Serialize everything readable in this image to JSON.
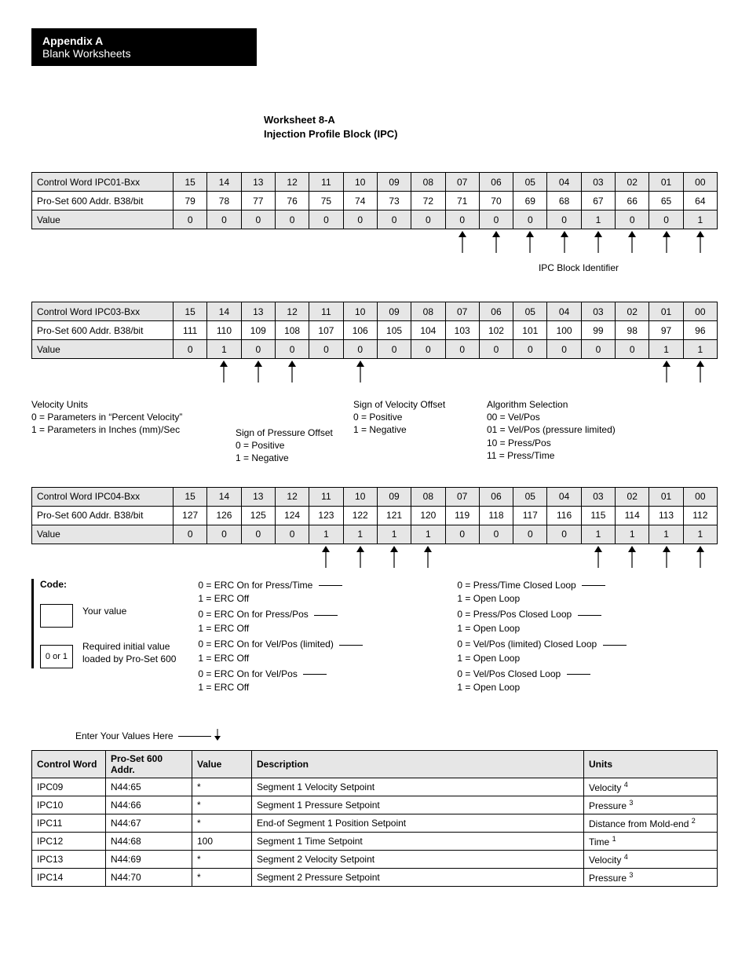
{
  "header": {
    "appendix": "Appendix A",
    "subtitle": "Blank Worksheets"
  },
  "worksheet_title": {
    "line1": "Worksheet 8-A",
    "line2": "Injection Profile Block (IPC)"
  },
  "colors": {
    "header_bg": "#e6e6e6",
    "black": "#000000",
    "white": "#ffffff"
  },
  "bit_tables": [
    {
      "rows": [
        {
          "label": "Control Word IPC01-Bxx",
          "cells": [
            "15",
            "14",
            "13",
            "12",
            "11",
            "10",
            "09",
            "08",
            "07",
            "06",
            "05",
            "04",
            "03",
            "02",
            "01",
            "00"
          ],
          "shaded": true
        },
        {
          "label": "Pro-Set 600 Addr. B38/bit",
          "cells": [
            "79",
            "78",
            "77",
            "76",
            "75",
            "74",
            "73",
            "72",
            "71",
            "70",
            "69",
            "68",
            "67",
            "66",
            "65",
            "64"
          ],
          "shaded": false
        },
        {
          "label": "Value",
          "cells": [
            "0",
            "0",
            "0",
            "0",
            "0",
            "0",
            "0",
            "0",
            "0",
            "0",
            "0",
            "0",
            "1",
            "0",
            "0",
            "1"
          ],
          "shaded": true
        }
      ],
      "arrows_at": [
        8,
        9,
        10,
        11,
        12,
        13,
        14,
        15
      ],
      "post_label": "IPC Block Identifier"
    },
    {
      "rows": [
        {
          "label": "Control Word  IPC03-Bxx",
          "cells": [
            "15",
            "14",
            "13",
            "12",
            "11",
            "10",
            "09",
            "08",
            "07",
            "06",
            "05",
            "04",
            "03",
            "02",
            "01",
            "00"
          ],
          "shaded": true
        },
        {
          "label": "Pro-Set 600 Addr. B38/bit",
          "cells": [
            "111",
            "110",
            "109",
            "108",
            "107",
            "106",
            "105",
            "104",
            "103",
            "102",
            "101",
            "100",
            "99",
            "98",
            "97",
            "96"
          ],
          "shaded": false
        },
        {
          "label": "Value",
          "cells": [
            "0",
            "1",
            "0",
            "0",
            "0",
            "0",
            "0",
            "0",
            "0",
            "0",
            "0",
            "0",
            "0",
            "0",
            "1",
            "1"
          ],
          "shaded": true
        }
      ],
      "arrows_at": [
        1,
        2,
        3,
        5,
        14,
        15
      ],
      "annotations": {
        "velocity_units": {
          "title": "Velocity Units",
          "l1": "0 = Parameters in “Percent Velocity”",
          "l2": "1 = Parameters in Inches (mm)/Sec"
        },
        "sign_pressure": {
          "title": "Sign of Pressure Offset",
          "l1": "0 =  Positive",
          "l2": "1 =  Negative"
        },
        "sign_velocity": {
          "title": "Sign of Velocity Offset",
          "l1": "0 =  Positive",
          "l2": "1 =  Negative"
        },
        "algo": {
          "title": "Algorithm Selection",
          "l1": "00 = Vel/Pos",
          "l2": "01 = Vel/Pos (pressure limited)",
          "l3": "10 = Press/Pos",
          "l4": "11 = Press/Time"
        }
      }
    },
    {
      "rows": [
        {
          "label": "Control Word  IPC04-Bxx",
          "cells": [
            "15",
            "14",
            "13",
            "12",
            "11",
            "10",
            "09",
            "08",
            "07",
            "06",
            "05",
            "04",
            "03",
            "02",
            "01",
            "00"
          ],
          "shaded": true
        },
        {
          "label": "Pro-Set 600 Addr. B38/bit",
          "cells": [
            "127",
            "126",
            "125",
            "124",
            "123",
            "122",
            "121",
            "120",
            "119",
            "118",
            "117",
            "116",
            "115",
            "114",
            "113",
            "112"
          ],
          "shaded": false
        },
        {
          "label": "Value",
          "cells": [
            "0",
            "0",
            "0",
            "0",
            "1",
            "1",
            "1",
            "1",
            "0",
            "0",
            "0",
            "0",
            "1",
            "1",
            "1",
            "1"
          ],
          "shaded": true
        }
      ],
      "arrows_at": [
        4,
        5,
        6,
        7,
        12,
        13,
        14,
        15
      ],
      "code": {
        "title": "Code:",
        "your_value": "Your value",
        "req_l1": "Required initial value",
        "req_l2": "loaded by Pro-Set 600",
        "cell2": "0 or 1",
        "erc": [
          {
            "a": "0 = ERC On for Press/Time",
            "b": "1 = ERC Off"
          },
          {
            "a": "0 = ERC On for Press/Pos",
            "b": "1 = ERC Off"
          },
          {
            "a": "0 = ERC On for Vel/Pos (limited)",
            "b": "1 = ERC Off"
          },
          {
            "a": "0 = ERC On for Vel/Pos",
            "b": "1 = ERC Off"
          }
        ],
        "loops": [
          {
            "a": "0 = Press/Time Closed Loop",
            "b": "1 = Open Loop"
          },
          {
            "a": "0 = Press/Pos Closed Loop",
            "b": "1 = Open Loop"
          },
          {
            "a": "0 = Vel/Pos (limited) Closed Loop",
            "b": "1 = Open Loop"
          },
          {
            "a": "0 = Vel/Pos Closed Loop",
            "b": "1 = Open Loop"
          }
        ]
      }
    }
  ],
  "enter_values_label": "Enter Your Values Here",
  "word_table": {
    "headers": [
      "Control Word",
      "Pro-Set 600 Addr.",
      "Value",
      "Description",
      "Units"
    ],
    "col_widths": [
      "94px",
      "110px",
      "76px",
      "auto",
      "170px"
    ],
    "rows": [
      [
        "IPC09",
        "N44:65",
        "*",
        "Segment 1 Velocity Setpoint",
        "Velocity ",
        "4"
      ],
      [
        "IPC10",
        "N44:66",
        "*",
        "Segment 1 Pressure Setpoint",
        "Pressure ",
        "3"
      ],
      [
        "IPC11",
        "N44:67",
        "*",
        "End-of Segment 1 Position Setpoint",
        "Distance from Mold-end ",
        "2"
      ],
      [
        "IPC12",
        "N44:68",
        "100",
        "Segment 1 Time Setpoint",
        "Time ",
        "1"
      ],
      [
        "IPC13",
        "N44:69",
        "*",
        "Segment 2 Velocity Setpoint",
        "Velocity ",
        "4"
      ],
      [
        "IPC14",
        "N44:70",
        "*",
        "Segment 2 Pressure Setpoint",
        "Pressure ",
        "3"
      ]
    ]
  }
}
